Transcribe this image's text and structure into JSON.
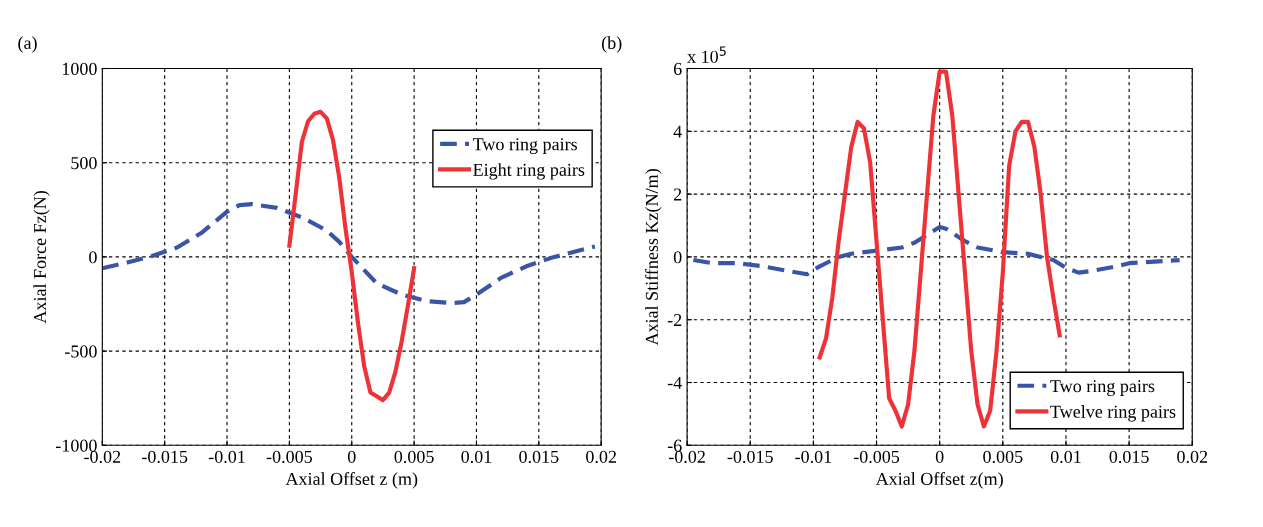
{
  "chart_data": [
    {
      "type": "line",
      "title": "(a)",
      "xlabel": "Axial Offset z (m)",
      "ylabel": "Axial Force Fz(N)",
      "xlim": [
        -0.02,
        0.02
      ],
      "xticks": [
        -0.02,
        -0.015,
        -0.01,
        -0.005,
        0,
        0.005,
        0.01,
        0.015,
        0.02
      ],
      "ylim": [
        -1000,
        1000
      ],
      "yticks": [
        -1000,
        -500,
        0,
        500,
        1000
      ],
      "grid": true,
      "legend": "top right",
      "series": [
        {
          "name": "Two ring pairs",
          "color": "#3a55a8",
          "line_style": "dashed",
          "x": [
            -0.02,
            -0.018,
            -0.016,
            -0.014,
            -0.012,
            -0.01,
            -0.009,
            -0.008,
            -0.006,
            -0.004,
            -0.002,
            -0.001,
            0,
            0.001,
            0.002,
            0.004,
            0.006,
            0.008,
            0.009,
            0.01,
            0.012,
            0.014,
            0.016,
            0.018,
            0.0195
          ],
          "values": [
            -60,
            -30,
            5,
            50,
            130,
            240,
            275,
            280,
            260,
            210,
            140,
            80,
            0,
            -70,
            -140,
            -200,
            -235,
            -245,
            -240,
            -200,
            -110,
            -50,
            -5,
            30,
            55
          ]
        },
        {
          "name": "Eight ring pairs",
          "color": "#ee3338",
          "line_style": "solid",
          "x": [
            -0.005,
            -0.0045,
            -0.004,
            -0.0035,
            -0.003,
            -0.0025,
            -0.002,
            -0.0015,
            -0.001,
            -0.0005,
            0,
            0.0005,
            0.001,
            0.0015,
            0.002,
            0.0025,
            0.003,
            0.0035,
            0.004,
            0.0045,
            0.005
          ],
          "values": [
            60,
            330,
            610,
            720,
            760,
            770,
            735,
            620,
            420,
            150,
            -80,
            -350,
            -580,
            -720,
            -740,
            -760,
            -720,
            -610,
            -450,
            -260,
            -60
          ]
        }
      ]
    },
    {
      "type": "line",
      "title": "(b)",
      "xlabel": "Axial Offset z(m)",
      "ylabel": "Axial Stiffness Kz(N/m)",
      "annotations": [
        "x 10$^{5}$"
      ],
      "xlim": [
        -0.02,
        0.02
      ],
      "xticks": [
        -0.02,
        -0.015,
        -0.01,
        -0.005,
        0,
        0.005,
        0.01,
        0.015,
        0.02
      ],
      "ylim": [
        -6,
        6
      ],
      "yticks": [
        -6,
        -4,
        -2,
        0,
        2,
        4,
        6
      ],
      "grid": true,
      "legend": "bottom right",
      "series": [
        {
          "name": "Two ring pairs",
          "color": "#3a55a8",
          "line_style": "dashed",
          "x": [
            -0.0195,
            -0.018,
            -0.016,
            -0.014,
            -0.012,
            -0.0105,
            -0.0095,
            -0.008,
            -0.007,
            -0.005,
            -0.003,
            -0.002,
            -0.001,
            0,
            0.0005,
            0.002,
            0.003,
            0.005,
            0.007,
            0.008,
            0.009,
            0.01,
            0.011,
            0.012,
            0.014,
            0.015,
            0.017,
            0.019
          ],
          "values": [
            -0.1,
            -0.2,
            -0.2,
            -0.3,
            -0.45,
            -0.55,
            -0.3,
            0,
            0.1,
            0.2,
            0.3,
            0.45,
            0.7,
            0.95,
            0.9,
            0.5,
            0.3,
            0.15,
            0.1,
            0,
            -0.1,
            -0.35,
            -0.5,
            -0.45,
            -0.3,
            -0.2,
            -0.15,
            -0.1
          ]
        },
        {
          "name": "Twelve ring pairs",
          "color": "#ee3338",
          "line_style": "solid",
          "x": [
            -0.0095,
            -0.009,
            -0.0085,
            -0.008,
            -0.0075,
            -0.007,
            -0.0065,
            -0.006,
            -0.0055,
            -0.005,
            -0.0045,
            -0.004,
            -0.0035,
            -0.003,
            -0.0025,
            -0.002,
            -0.0015,
            -0.001,
            -0.0005,
            0,
            0.0005,
            0.001,
            0.0015,
            0.002,
            0.0025,
            0.003,
            0.0035,
            0.004,
            0.0045,
            0.005,
            0.0055,
            0.006,
            0.0065,
            0.007,
            0.0075,
            0.008,
            0.0085,
            0.009,
            0.0095
          ],
          "values": [
            -3.2,
            -2.6,
            -1.3,
            0.5,
            2.0,
            3.5,
            4.3,
            4.1,
            3.0,
            0.5,
            -2.0,
            -4.5,
            -4.9,
            -5.4,
            -4.7,
            -3.0,
            -0.5,
            2.0,
            4.5,
            5.9,
            5.9,
            4.5,
            2.0,
            -0.5,
            -3.0,
            -4.7,
            -5.4,
            -4.9,
            -3.0,
            -0.5,
            2.9,
            4.0,
            4.3,
            4.3,
            3.5,
            2.0,
            0,
            -1.3,
            -2.5
          ]
        }
      ]
    }
  ]
}
